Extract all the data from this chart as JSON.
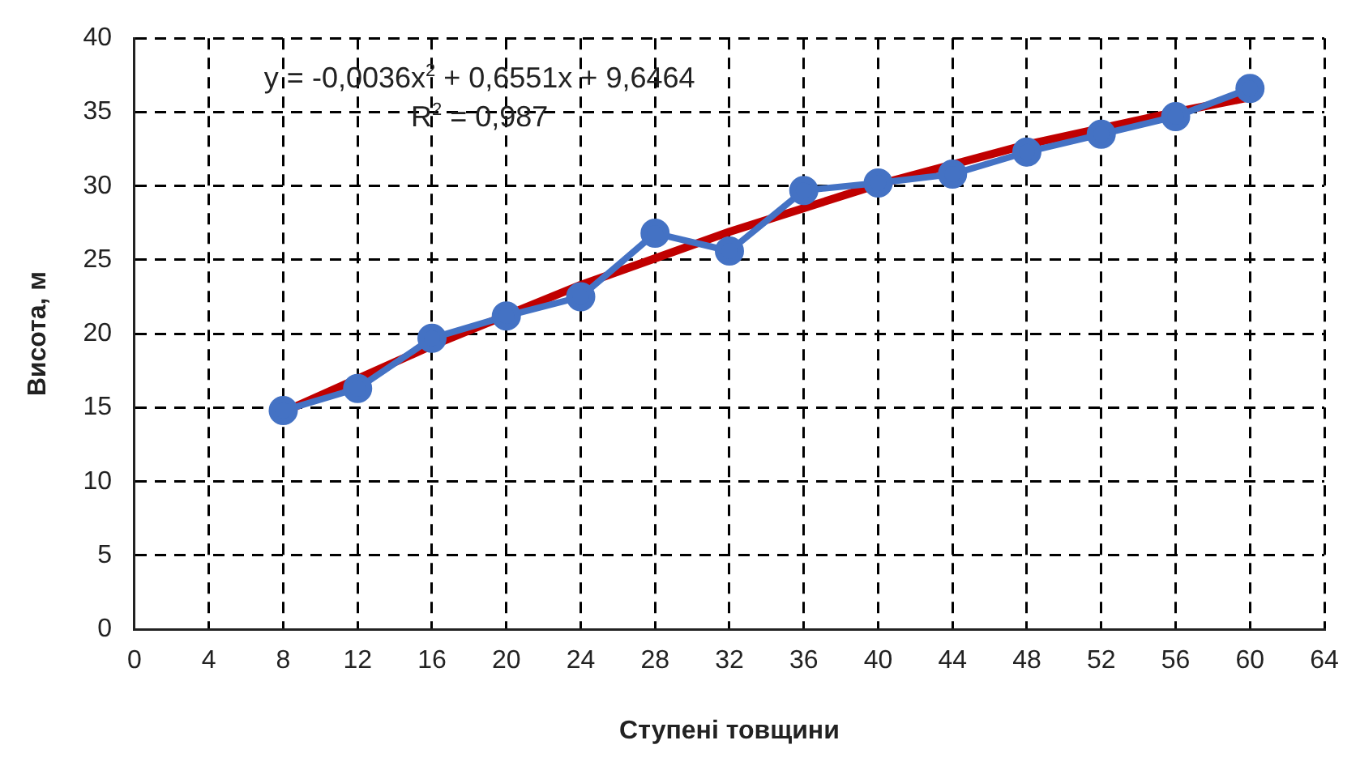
{
  "chart_data": {
    "type": "line",
    "xlabel": "Ступені товщини",
    "ylabel": "Висота, м",
    "x": [
      8,
      12,
      16,
      20,
      24,
      28,
      32,
      36,
      40,
      44,
      48,
      52,
      56,
      60
    ],
    "series": [
      {
        "color": "#4472c4",
        "values": [
          14.8,
          16.3,
          19.7,
          21.2,
          22.5,
          26.8,
          25.6,
          29.7,
          30.2,
          30.8,
          32.3,
          33.5,
          34.7,
          36.6
        ]
      },
      {
        "type": "line",
        "marker": "none",
        "color": "#c00000",
        "x": [
          8,
          16,
          24,
          32,
          40,
          48,
          56,
          60
        ],
        "values": [
          14.7,
          19.2,
          23.3,
          26.9,
          30.1,
          32.8,
          35.0,
          36.0
        ]
      }
    ],
    "marker": "circle",
    "xlim": [
      0,
      64
    ],
    "xticks": [
      0,
      4,
      8,
      12,
      16,
      20,
      24,
      28,
      32,
      36,
      40,
      44,
      48,
      52,
      56,
      60,
      64
    ],
    "ylim": [
      0,
      40
    ],
    "yticks": [
      0,
      5,
      10,
      15,
      20,
      25,
      30,
      35,
      40
    ],
    "grid": true,
    "legend": false,
    "annotations": [
      "y = -0,0036x$^{2}$ + 0,6551x + 9,6464",
      "R$^{2}$ = 0,987"
    ]
  }
}
